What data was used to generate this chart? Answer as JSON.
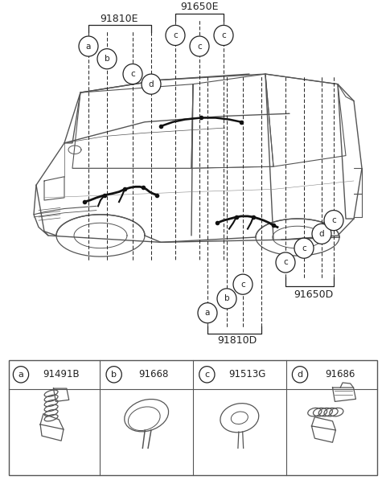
{
  "bg_color": "#ffffff",
  "line_color": "#555555",
  "dark_color": "#222222",
  "fig_width": 4.8,
  "fig_height": 6.02,
  "dpi": 100,
  "label_91810E": "91810E",
  "label_91650E": "91650E",
  "label_91810D": "91810D",
  "label_91650D": "91650D",
  "parts": [
    {
      "id": "a",
      "part_num": "91491B"
    },
    {
      "id": "b",
      "part_num": "91668"
    },
    {
      "id": "c",
      "part_num": "91513G"
    },
    {
      "id": "d",
      "part_num": "91686"
    }
  ]
}
